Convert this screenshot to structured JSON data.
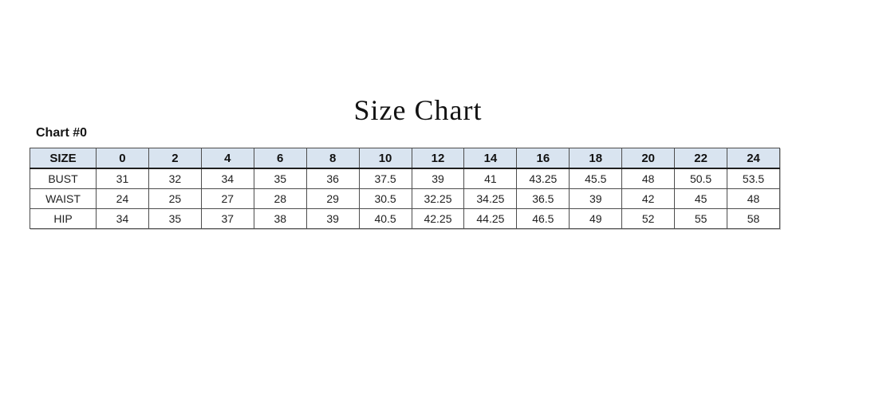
{
  "page": {
    "title": "Size Chart",
    "chart_label": "Chart #0"
  },
  "chart_data": {
    "type": "table",
    "title": "Size Chart",
    "label": "Chart #0",
    "header_bg": "#d9e4f0",
    "columns": [
      "SIZE",
      "0",
      "2",
      "4",
      "6",
      "8",
      "10",
      "12",
      "14",
      "16",
      "18",
      "20",
      "22",
      "24"
    ],
    "rows": [
      {
        "label": "BUST",
        "values": [
          "31",
          "32",
          "34",
          "35",
          "36",
          "37.5",
          "39",
          "41",
          "43.25",
          "45.5",
          "48",
          "50.5",
          "53.5"
        ]
      },
      {
        "label": "WAIST",
        "values": [
          "24",
          "25",
          "27",
          "28",
          "29",
          "30.5",
          "32.25",
          "34.25",
          "36.5",
          "39",
          "42",
          "45",
          "48"
        ]
      },
      {
        "label": "HIP",
        "values": [
          "34",
          "35",
          "37",
          "38",
          "39",
          "40.5",
          "42.25",
          "44.25",
          "46.5",
          "49",
          "52",
          "55",
          "58"
        ]
      }
    ]
  }
}
